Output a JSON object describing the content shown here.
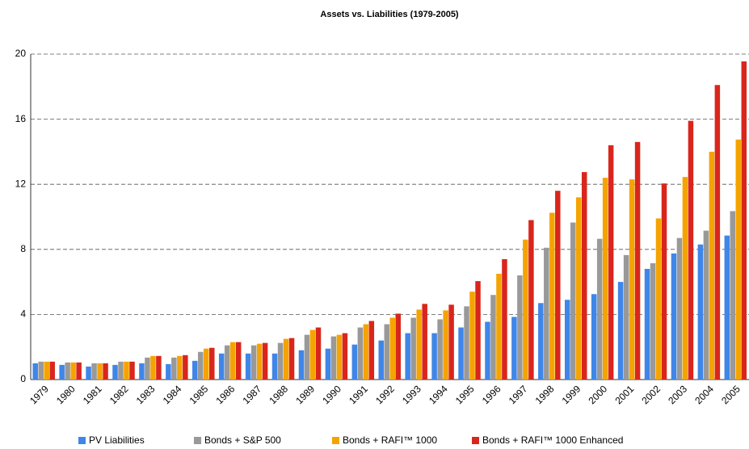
{
  "chart_data": {
    "type": "bar",
    "title": "Assets vs. Liabilities (1979-2005)",
    "categories": [
      "1979",
      "1980",
      "1981",
      "1982",
      "1983",
      "1984",
      "1985",
      "1986",
      "1987",
      "1988",
      "1989",
      "1990",
      "1991",
      "1992",
      "1993",
      "1994",
      "1995",
      "1996",
      "1997",
      "1998",
      "1999",
      "2000",
      "2001",
      "2002",
      "2003",
      "2004",
      "2005"
    ],
    "series": [
      {
        "name": "PV Liabilities",
        "color": "#3f86e8",
        "values": [
          1.0,
          0.9,
          0.8,
          0.9,
          1.0,
          0.95,
          1.15,
          1.6,
          1.6,
          1.6,
          1.8,
          1.9,
          2.15,
          2.4,
          2.85,
          2.85,
          3.2,
          3.55,
          3.85,
          4.7,
          4.9,
          5.25,
          6.0,
          6.8,
          7.75,
          8.3,
          8.85
        ]
      },
      {
        "name": "Bonds + S&P 500",
        "color": "#999999",
        "values": [
          1.1,
          1.05,
          1.0,
          1.1,
          1.35,
          1.35,
          1.7,
          2.1,
          2.1,
          2.25,
          2.75,
          2.65,
          3.2,
          3.4,
          3.8,
          3.7,
          4.5,
          5.2,
          6.4,
          8.1,
          9.65,
          8.65,
          7.65,
          7.15,
          8.7,
          9.15,
          10.35
        ]
      },
      {
        "name": "Bonds + RAFI™ 1000",
        "color": "#f5a300",
        "values": [
          1.1,
          1.05,
          1.0,
          1.1,
          1.45,
          1.45,
          1.9,
          2.3,
          2.2,
          2.5,
          3.05,
          2.75,
          3.4,
          3.8,
          4.3,
          4.25,
          5.4,
          6.5,
          8.6,
          10.25,
          11.2,
          12.4,
          12.3,
          9.9,
          12.45,
          14.0,
          14.75
        ]
      },
      {
        "name": "Bonds + RAFI™ 1000 Enhanced",
        "color": "#d9261c",
        "values": [
          1.1,
          1.05,
          1.0,
          1.1,
          1.45,
          1.5,
          1.95,
          2.3,
          2.25,
          2.55,
          3.2,
          2.85,
          3.6,
          4.05,
          4.65,
          4.6,
          6.05,
          7.4,
          9.8,
          11.6,
          12.75,
          14.4,
          14.6,
          12.05,
          15.9,
          18.1,
          19.55
        ]
      }
    ],
    "ylim": [
      0,
      20
    ],
    "yticks": [
      0,
      4,
      8,
      12,
      16,
      20
    ],
    "grid": true,
    "legend": "bottom"
  }
}
